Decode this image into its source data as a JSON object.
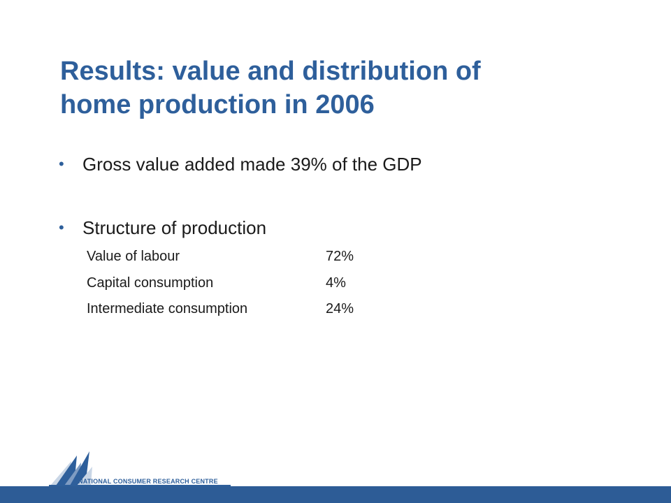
{
  "slide": {
    "title_line1": "Results: value and distribution of",
    "title_line2": "home production in 2006",
    "bullets": [
      {
        "text": "Gross value added made 39% of the GDP"
      },
      {
        "text": "Structure of production"
      }
    ],
    "structure": [
      {
        "label": "Value of labour",
        "value": "72%"
      },
      {
        "label": "Capital consumption",
        "value": "4%"
      },
      {
        "label": "Intermediate consumption",
        "value": "24%"
      }
    ]
  },
  "footer": {
    "logo_text": "NATIONAL CONSUMER RESEARCH CENTRE",
    "logo_icon": "sailboat-logo-icon"
  },
  "colors": {
    "title": "#2E5F9B",
    "bullet_dot": "#2E5F9B",
    "footer_bar": "#2D5C96",
    "text": "#1a1a1a"
  }
}
